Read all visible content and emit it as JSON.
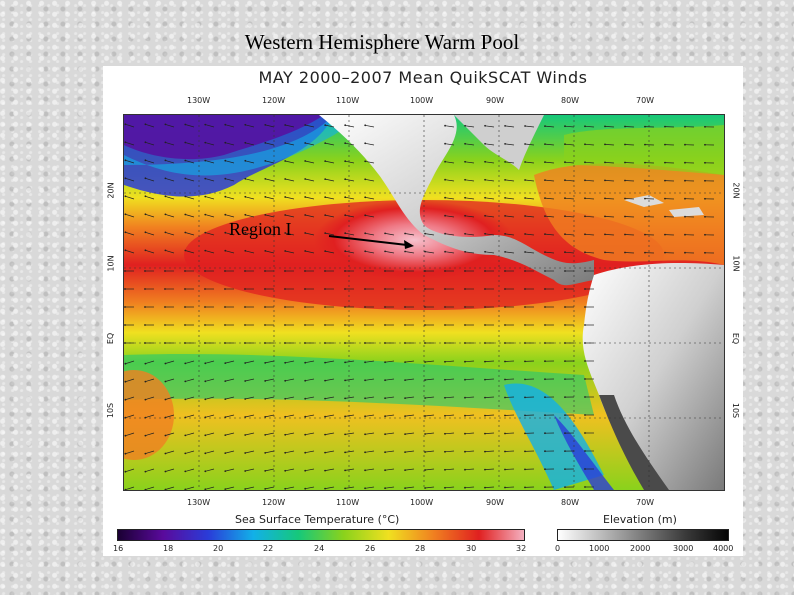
{
  "slide_title": "Western Hemisphere Warm Pool",
  "map_title": "MAY 2000–2007 Mean QuikSCAT Winds",
  "annotation": "Region I",
  "longitude_ticks": [
    "130W",
    "120W",
    "110W",
    "100W",
    "90W",
    "80W",
    "70W"
  ],
  "latitude_ticks": [
    "20N",
    "10N",
    "EQ",
    "10S"
  ],
  "sst_colorbar": {
    "title": "Sea Surface Temperature (°C)",
    "labels": [
      "16",
      "18",
      "20",
      "22",
      "24",
      "26",
      "28",
      "30",
      "32"
    ],
    "colors": [
      "#1a0033",
      "#5a0a9c",
      "#2a3cd8",
      "#12b0e8",
      "#16c87a",
      "#8ad21c",
      "#f0e020",
      "#f08020",
      "#e02020",
      "#f4b0c0"
    ]
  },
  "elevation_colorbar": {
    "title": "Elevation (m)",
    "labels": [
      "0",
      "1000",
      "2000",
      "3000",
      "4000"
    ],
    "colors": [
      "#ffffff",
      "#bdbdbd",
      "#7a7a7a",
      "#3a3a3a",
      "#050505"
    ]
  }
}
